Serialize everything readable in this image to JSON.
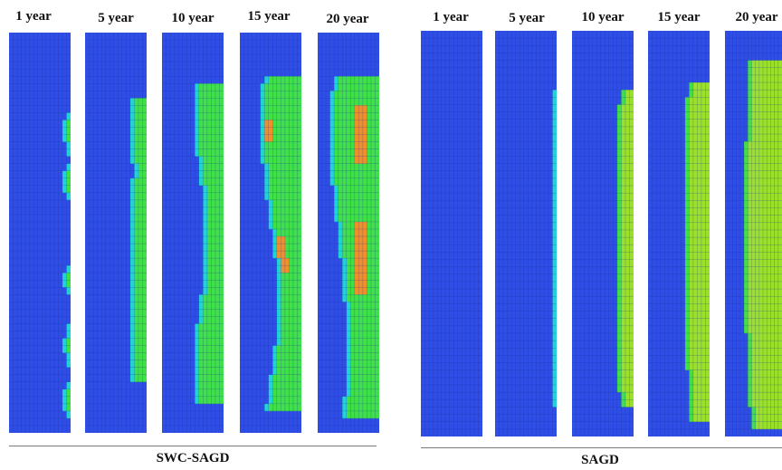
{
  "groups": [
    {
      "caption": "SWC-SAGD",
      "panels": [
        {
          "label": "1 year"
        },
        {
          "label": "5 year"
        },
        {
          "label": "10 year"
        },
        {
          "label": "15 year"
        },
        {
          "label": "20 year"
        }
      ]
    },
    {
      "caption": "SAGD",
      "panels": [
        {
          "label": "1 year"
        },
        {
          "label": "5 year"
        },
        {
          "label": "10 year"
        },
        {
          "label": "15 year"
        },
        {
          "label": "20 year"
        }
      ]
    }
  ],
  "colors": {
    "background_blue": "#2f4ee6",
    "cyan": "#22d3d6",
    "green": "#3fe04a",
    "yellow_green": "#9be02a",
    "orange": "#f0902a",
    "grid_line": "#1a2a9a"
  }
}
